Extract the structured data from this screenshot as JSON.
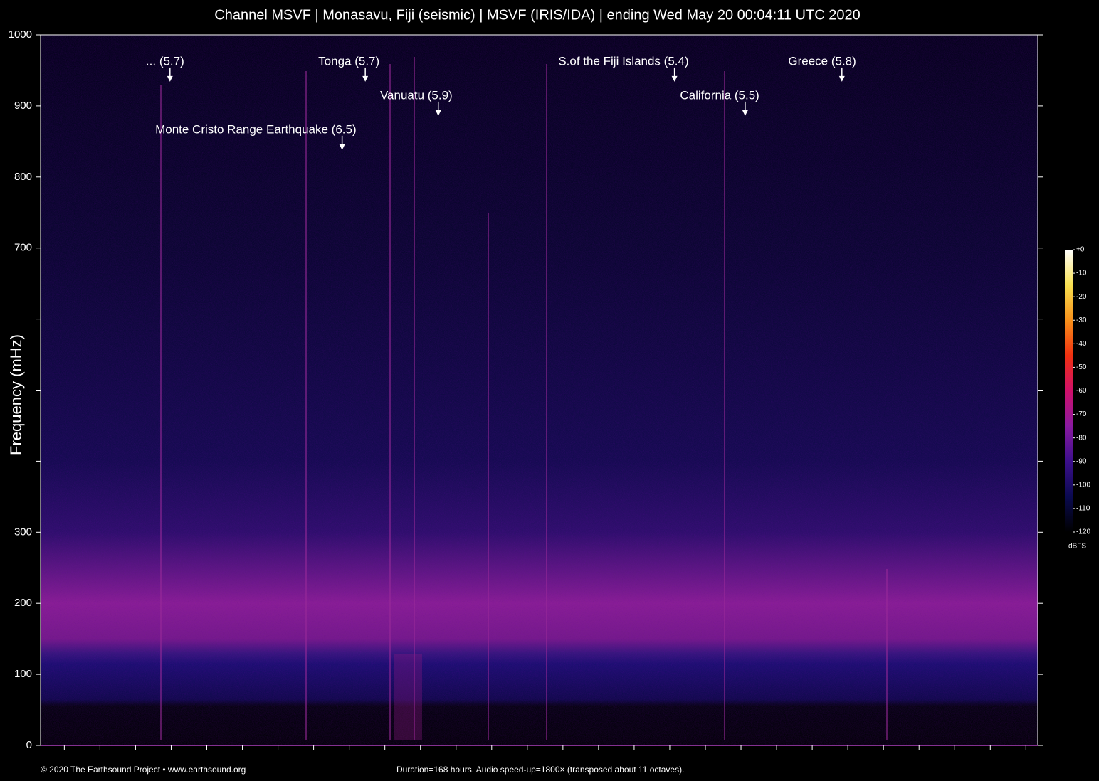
{
  "chart_data": {
    "type": "spectrogram",
    "title": "Channel MSVF | Monasavu, Fiji (seismic) | MSVF (IRIS/IDA) | ending Wed May 20 00:04:11 UTC 2020",
    "ylabel": "Frequency (mHz)",
    "ylim": [
      0,
      1000
    ],
    "yticks": [
      0,
      100,
      200,
      300,
      {
        "value": 400,
        "label": null
      },
      {
        "value": 500,
        "label": null
      },
      {
        "value": 600,
        "label": null
      },
      700,
      800,
      900,
      1000
    ],
    "xlim": [
      0,
      168
    ],
    "xticks": [
      {
        "value": 4,
        "label": null
      },
      {
        "value": 10,
        "label": null
      },
      {
        "value": 16,
        "label": null
      },
      {
        "value": 22,
        "label": null
      },
      {
        "value": 28,
        "label": null
      },
      {
        "value": 34,
        "label": null
      },
      {
        "value": 40,
        "label": null
      },
      {
        "value": 46,
        "label": null
      },
      {
        "value": 52,
        "label": null
      },
      {
        "value": 58,
        "label": null
      },
      {
        "value": 64,
        "label": null
      },
      {
        "value": 70,
        "label": null
      },
      {
        "value": 76,
        "label": null
      },
      {
        "value": 82,
        "label": null
      },
      {
        "value": 88,
        "label": null
      },
      {
        "value": 94,
        "label": null
      },
      {
        "value": 100,
        "label": null
      },
      {
        "value": 106,
        "label": null
      },
      {
        "value": 112,
        "label": null
      },
      {
        "value": 118,
        "label": null
      },
      {
        "value": 124,
        "label": null
      },
      {
        "value": 130,
        "label": null
      },
      {
        "value": 136,
        "label": null
      },
      {
        "value": 142,
        "label": null
      },
      {
        "value": 148,
        "label": null
      },
      {
        "value": 154,
        "label": null
      },
      {
        "value": 160,
        "label": null
      },
      {
        "value": 166,
        "label": null
      }
    ],
    "annotations": [
      {
        "text": "... (5.7)",
        "x": 21.8,
        "y": 934
      },
      {
        "text": "Tonga (5.7)",
        "x": 54.7,
        "y": 934
      },
      {
        "text": "Vanuatu (5.9)",
        "x": 67.0,
        "y": 886
      },
      {
        "text": "Monte Cristo Range Earthquake (6.5)",
        "x": 50.8,
        "y": 838
      },
      {
        "text": "S.of the Fiji Islands (5.4)",
        "x": 106.8,
        "y": 934
      },
      {
        "text": "California (5.5)",
        "x": 118.7,
        "y": 886
      },
      {
        "text": "Greece (5.8)",
        "x": 135.0,
        "y": 934
      }
    ],
    "colorbar": {
      "label": "dBFS",
      "lim": [
        -120,
        0
      ],
      "ticks": [
        {
          "value": 0,
          "label": "+0"
        },
        -10,
        -20,
        -30,
        -40,
        -50,
        -60,
        -70,
        -80,
        -90,
        -100,
        -110,
        -120
      ],
      "colors": [
        "#000000",
        "#0a0a50",
        "#3c0f8c",
        "#8a1aa0",
        "#d0106a",
        "#f03010",
        "#f8901a",
        "#f8e050",
        "#ffffff"
      ]
    },
    "credit": "© 2020 The Earthsound Project • www.earthsound.org",
    "note": "Duration=168 hours. Audio speed-up=1800× (transposed about 11 octaves)."
  }
}
